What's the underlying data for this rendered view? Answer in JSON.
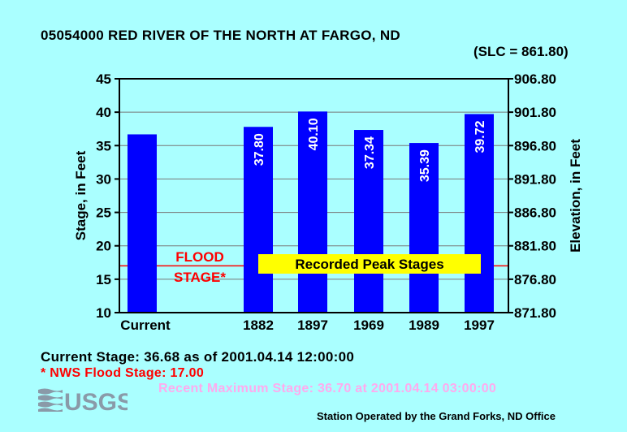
{
  "header": {
    "title": "05054000 RED RIVER OF THE NORTH AT FARGO, ND",
    "slc": "(SLC = 861.80)"
  },
  "colors": {
    "background": "#aaffff",
    "plot_background": "#aaffff",
    "bar": "#0000ff",
    "flood_line": "#ff0000",
    "label_box": "#ffff00",
    "recent_max_text": "#ffaaee",
    "grid": "#777777"
  },
  "chart_data": {
    "type": "bar",
    "categories": [
      "Current",
      "1882",
      "1897",
      "1969",
      "1989",
      "1997"
    ],
    "values": [
      36.68,
      37.8,
      40.1,
      37.34,
      35.39,
      39.72
    ],
    "value_labels": [
      "",
      "37.80",
      "40.10",
      "37.34",
      "35.39",
      "39.72"
    ],
    "ylabel": "Stage, in Feet",
    "ylabel_right": "Elevation, in Feet",
    "ylim": [
      10,
      45
    ],
    "yticks": [
      "10",
      "15",
      "20",
      "25",
      "30",
      "35",
      "40",
      "45"
    ],
    "yticks_right": [
      "871.80",
      "876.80",
      "881.80",
      "886.80",
      "891.80",
      "896.80",
      "901.80",
      "906.80"
    ],
    "grid": true,
    "flood_stage": 17.0,
    "flood_label_1": "FLOOD",
    "flood_label_2": "STAGE*",
    "peak_label": "Recorded Peak Stages"
  },
  "footer": {
    "current_stage": "Current Stage: 36.68 as of 2001.04.14 12:00:00",
    "flood_note": "* NWS Flood Stage: 17.00",
    "recent_max": "Recent Maximum Stage: 36.70 at 2001.04.14 03:00:00",
    "logo_text": "USGS",
    "station_op": "Station Operated by the Grand Forks, ND Office"
  }
}
